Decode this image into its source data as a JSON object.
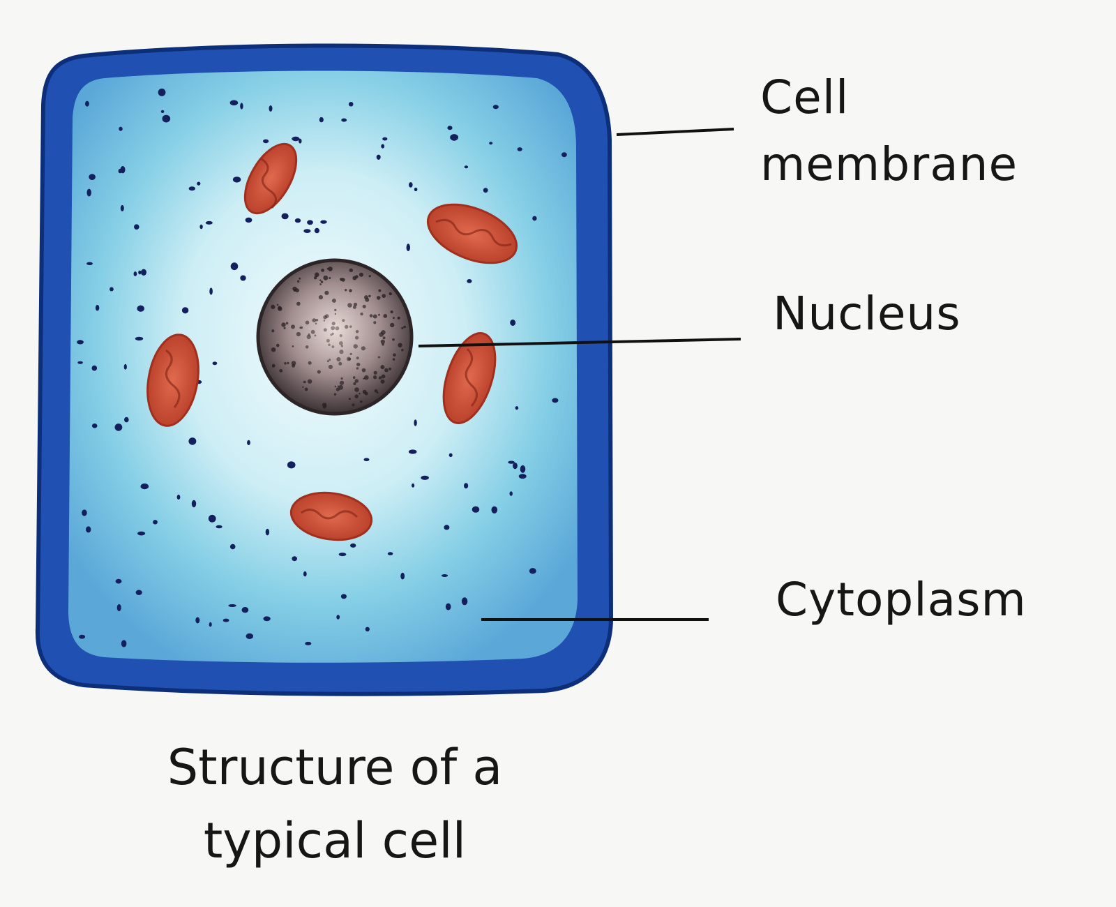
{
  "labels": {
    "cell_membrane": [
      "Cell",
      "membrane"
    ],
    "nucleus": "Nucleus",
    "cytoplasm": "Cytoplasm"
  },
  "caption": [
    "Structure of a",
    "typical cell"
  ],
  "colors": {
    "membrane_dark": "#1f4fb0",
    "cytoplasm_light": "#d9f0f6",
    "cytoplasm_mid": "#8fd0e6",
    "organelle": "#c8452e",
    "nucleus": "#5a4c4e",
    "dots": "#14205e"
  }
}
